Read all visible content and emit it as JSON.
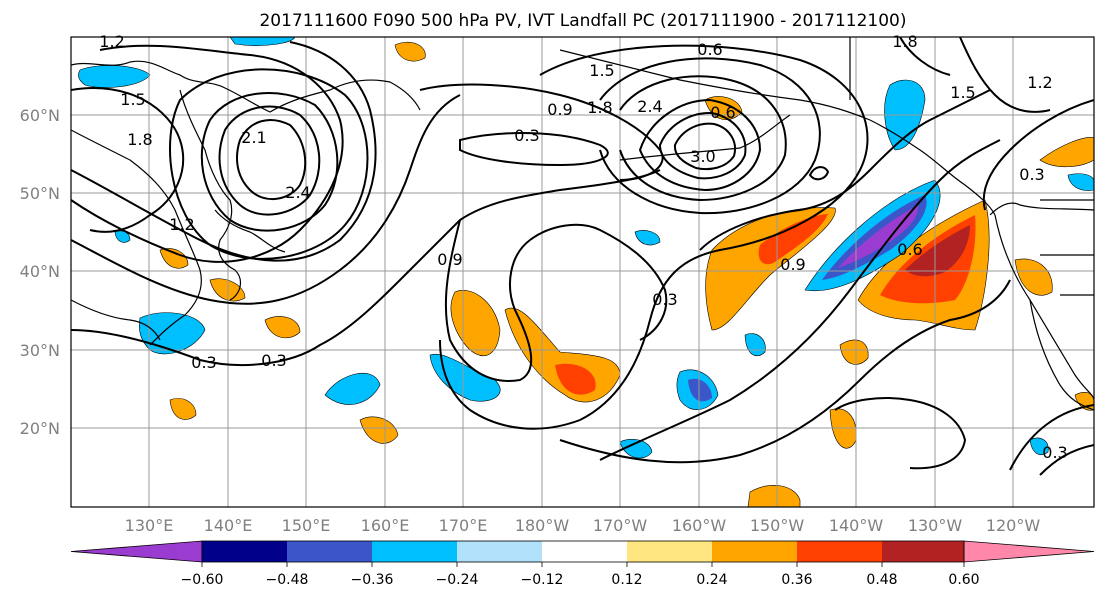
{
  "title": "2017111600 F090 500 hPa PV, IVT Landfall PC (2017111900 - 2017112100)",
  "map": {
    "lat_labels": [
      "60°N",
      "50°N",
      "40°N",
      "30°N",
      "20°N"
    ],
    "lon_labels": [
      "130°E",
      "140°E",
      "150°E",
      "160°E",
      "170°E",
      "180°W",
      "170°W",
      "160°W",
      "150°W",
      "140°W",
      "130°W",
      "120°W"
    ],
    "gridlines": true
  },
  "contour_labels": [
    "1.2",
    "1.5",
    "1.8",
    "2.1",
    "2.4",
    "1.2",
    "0.3",
    "0.3",
    "0.9",
    "0.6",
    "0.3",
    "1.5",
    "1.8",
    "0.9",
    "0.6",
    "2.4",
    "3.0",
    "1.8",
    "1.5",
    "1.2",
    "0.3",
    "0.9",
    "0.6",
    "0.3",
    "0.3"
  ],
  "colorbar": {
    "ticks": [
      "−0.60",
      "−0.48",
      "−0.36",
      "−0.24",
      "−0.12",
      "0.12",
      "0.24",
      "0.36",
      "0.48",
      "0.60"
    ],
    "colors": [
      "#9a3cd0",
      "#00008b",
      "#3a56c9",
      "#00bfff",
      "#b0e0fa",
      "#ffffff",
      "#ffe680",
      "#ffa500",
      "#ff4000",
      "#b22222",
      "#ff88aa"
    ]
  }
}
